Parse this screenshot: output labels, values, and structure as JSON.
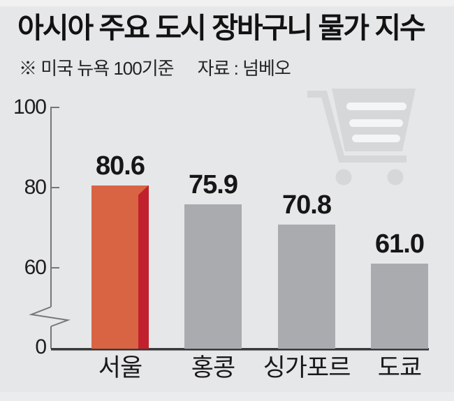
{
  "header": {
    "title": "아시아 주요 도시 장바구니 물가 지수",
    "note": "※ 미국 뉴욕 100기준",
    "source": "자료 : 넘베오"
  },
  "chart_data": {
    "type": "bar",
    "title": "아시아 주요 도시 장바구니 물가 지수",
    "categories": [
      "서울",
      "홍콩",
      "싱가포르",
      "도쿄"
    ],
    "values": [
      80.6,
      75.9,
      70.8,
      61.0
    ],
    "value_labels": [
      "80.6",
      "75.9",
      "70.8",
      "61.0"
    ],
    "xlabel": "",
    "ylabel": "",
    "ylim": [
      0,
      100
    ],
    "yticks_labeled": [
      100,
      80,
      60
    ],
    "baseline_label": "0",
    "axis_break_below": 60,
    "grid": false,
    "legend": "none",
    "bar_colors": [
      "#d96443",
      "#a9abae",
      "#a9abae",
      "#a9abae"
    ],
    "highlight_index": 0,
    "highlight_shade_color": "#c1212d"
  },
  "colors": {
    "background": "#e6e7e9",
    "accent_orange": "#d96443",
    "accent_dark_red": "#c1212d",
    "bar_gray": "#a9abae",
    "cart_gray": "#d6d7d9",
    "cart_slot": "#f4f5f6",
    "axis_line": "#76777a",
    "baseline": "#38393b",
    "text": "#121212"
  },
  "icons": {
    "cart": "shopping-cart-icon"
  }
}
